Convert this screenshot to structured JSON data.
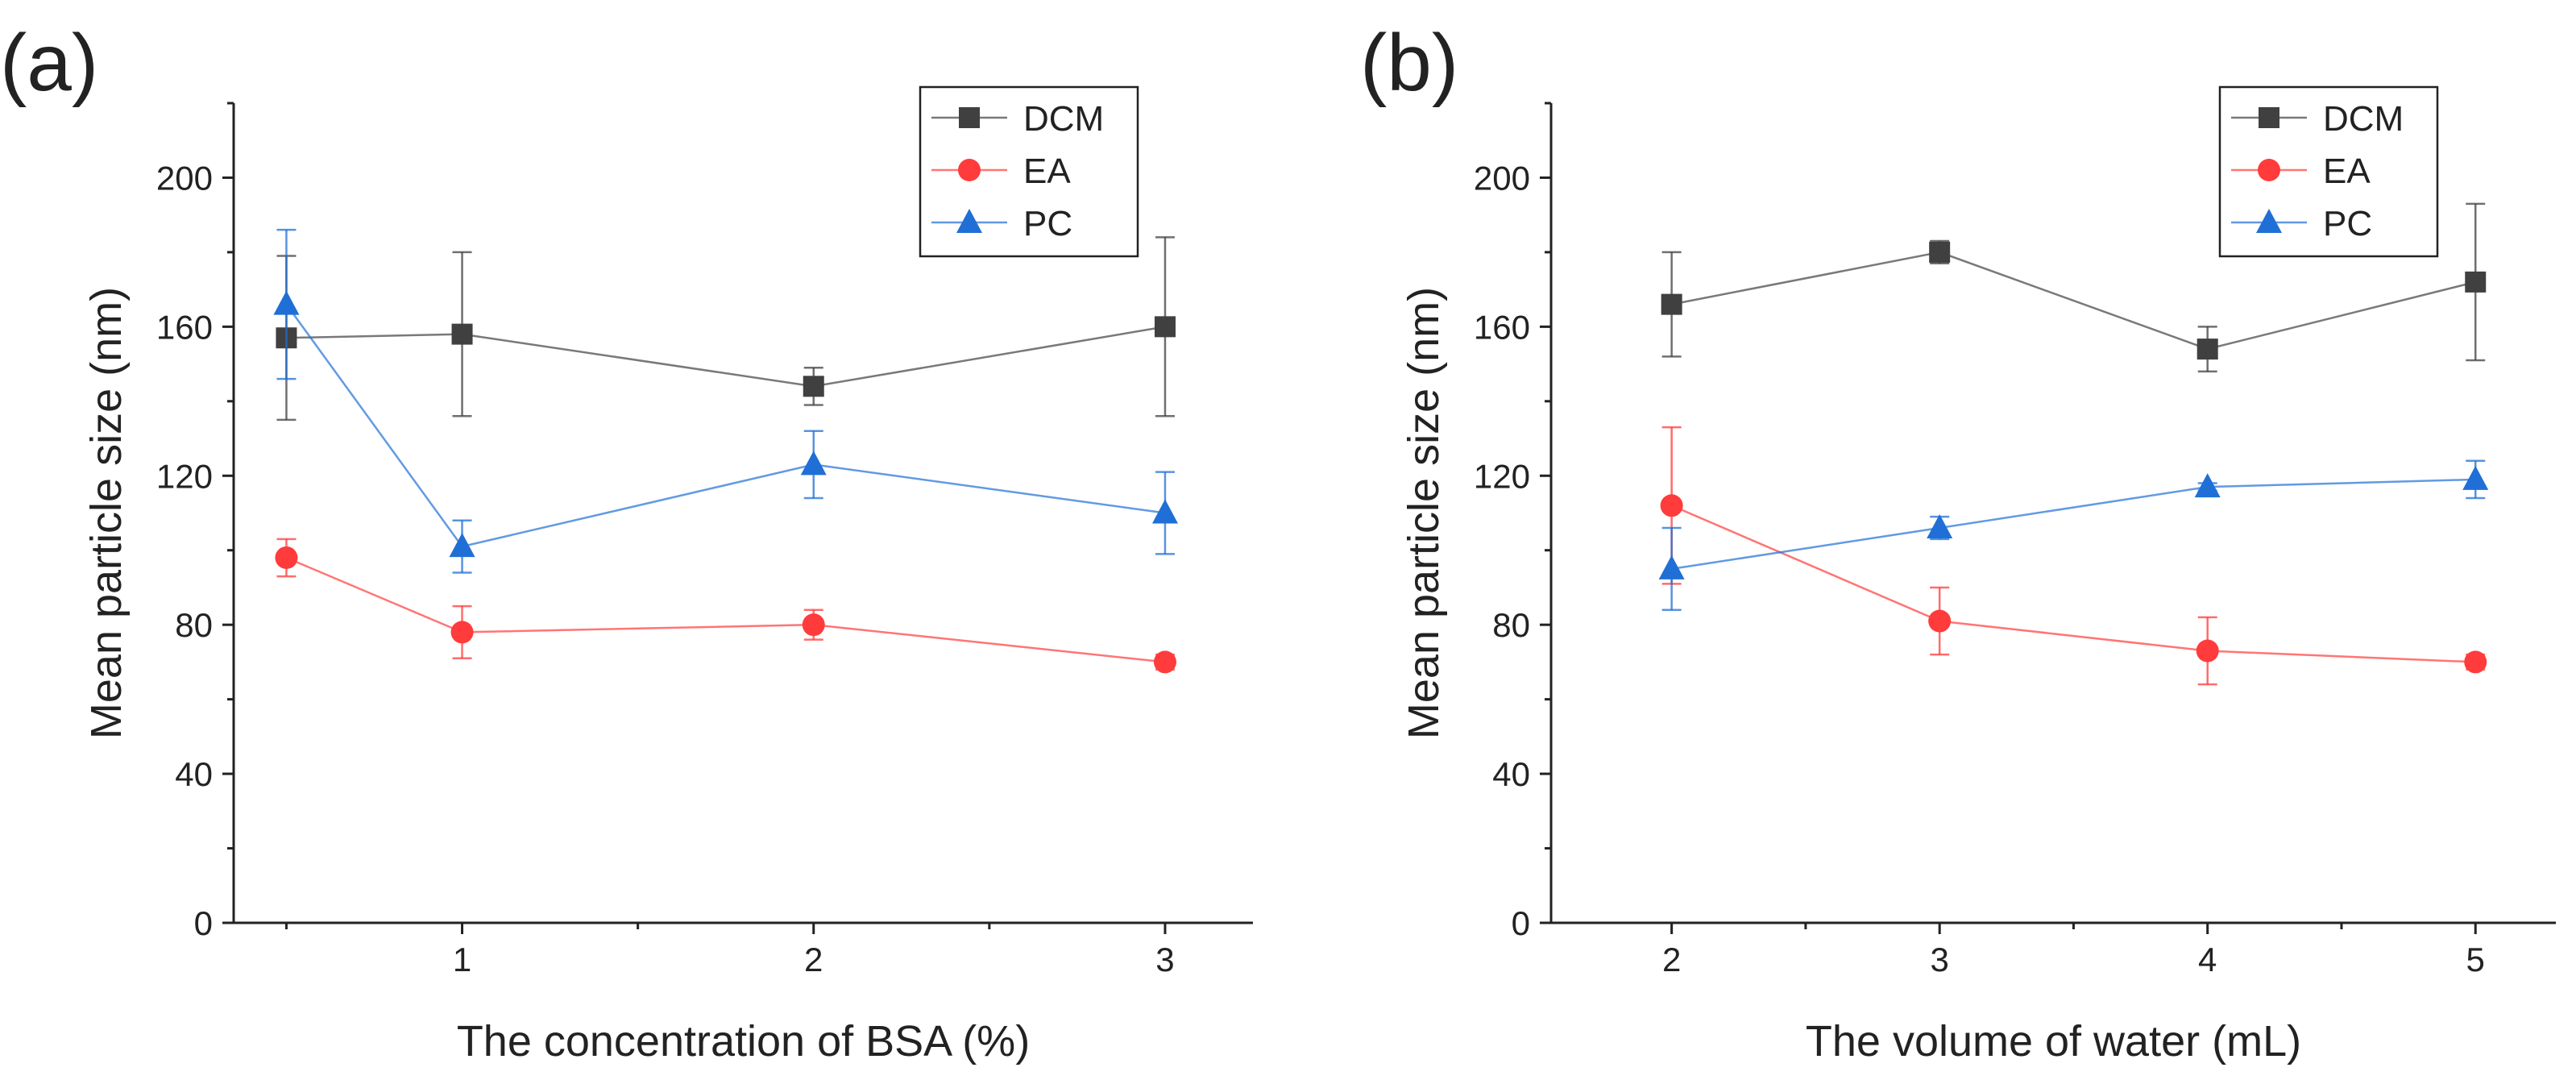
{
  "chart_data": [
    {
      "panel_label": "(a)",
      "type": "line",
      "xlabel": "The concentration of BSA (%)",
      "ylabel": "Mean particle size (nm)",
      "xlim": [
        0.35,
        3.25
      ],
      "ylim": [
        0,
        220
      ],
      "x_ticks": [
        1,
        2,
        3
      ],
      "x_tick_labels": [
        "1",
        "2",
        "3"
      ],
      "y_ticks": [
        0,
        40,
        80,
        120,
        160,
        200
      ],
      "y_tick_labels": [
        "0",
        "40",
        "80",
        "120",
        "160",
        "200"
      ],
      "grid": false,
      "legend_position": "top-right",
      "series": [
        {
          "name": "DCM",
          "marker": "square",
          "color": "#404040",
          "x": [
            0.5,
            1,
            2,
            3
          ],
          "y": [
            157,
            158,
            144,
            160
          ],
          "err": [
            22,
            22,
            5,
            24
          ]
        },
        {
          "name": "EA",
          "marker": "circle",
          "color": "#ff3b3b",
          "x": [
            0.5,
            1,
            2,
            3
          ],
          "y": [
            98,
            78,
            80,
            70
          ],
          "err": [
            5,
            7,
            4,
            2
          ]
        },
        {
          "name": "PC",
          "marker": "triangle",
          "color": "#1f6fd6",
          "x": [
            0.5,
            1,
            2,
            3
          ],
          "y": [
            166,
            101,
            123,
            110
          ],
          "err": [
            20,
            7,
            9,
            11
          ]
        }
      ]
    },
    {
      "panel_label": "(b)",
      "type": "line",
      "xlabel": "The volume of water (mL)",
      "ylabel": "Mean particle size (nm)",
      "xlim": [
        1.55,
        5.3
      ],
      "ylim": [
        0,
        220
      ],
      "x_ticks": [
        2,
        3,
        4,
        5
      ],
      "x_tick_labels": [
        "2",
        "3",
        "4",
        "5"
      ],
      "y_ticks": [
        0,
        40,
        80,
        120,
        160,
        200
      ],
      "y_tick_labels": [
        "0",
        "40",
        "80",
        "120",
        "160",
        "200"
      ],
      "grid": false,
      "legend_position": "top-right",
      "series": [
        {
          "name": "DCM",
          "marker": "square",
          "color": "#404040",
          "x": [
            2,
            3,
            4,
            5
          ],
          "y": [
            166,
            180,
            154,
            172
          ],
          "err": [
            14,
            3,
            6,
            21
          ]
        },
        {
          "name": "EA",
          "marker": "circle",
          "color": "#ff3b3b",
          "x": [
            2,
            3,
            4,
            5
          ],
          "y": [
            112,
            81,
            73,
            70
          ],
          "err": [
            21,
            9,
            9,
            2
          ]
        },
        {
          "name": "PC",
          "marker": "triangle",
          "color": "#1f6fd6",
          "x": [
            2,
            3,
            4,
            5
          ],
          "y": [
            95,
            106,
            117,
            119
          ],
          "err": [
            11,
            3,
            1,
            5
          ]
        }
      ]
    }
  ]
}
